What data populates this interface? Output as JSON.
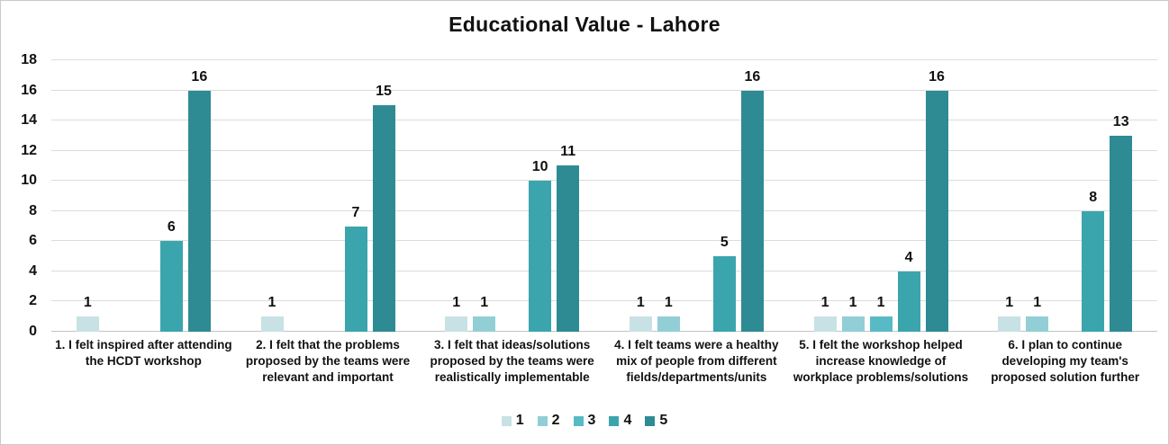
{
  "window": {
    "background": "#ffffff",
    "border_color": "#c9c9c9"
  },
  "chart_data": {
    "type": "bar",
    "title": "Educational Value - Lahore",
    "categories": [
      "1. I felt inspired after attending the HCDT workshop",
      "2. I felt that the problems proposed by the teams were relevant and important",
      "3. I felt that ideas/solutions proposed by the teams were realistically implementable",
      "4. I felt teams were a healthy mix of people from different fields/departments/units",
      "5. I felt the workshop helped increase knowledge of workplace problems/solutions",
      "6. I plan to continue developing my team's proposed solution further"
    ],
    "series": [
      {
        "name": "1",
        "color": "#c8e1e4",
        "values": [
          1,
          1,
          1,
          1,
          1,
          1
        ]
      },
      {
        "name": "2",
        "color": "#92ced5",
        "values": [
          0,
          0,
          1,
          1,
          1,
          1
        ]
      },
      {
        "name": "3",
        "color": "#58bac5",
        "values": [
          0,
          0,
          0,
          0,
          1,
          0
        ]
      },
      {
        "name": "4",
        "color": "#3ba5ad",
        "values": [
          6,
          7,
          10,
          5,
          4,
          8
        ]
      },
      {
        "name": "5",
        "color": "#2e8b94",
        "values": [
          16,
          15,
          11,
          16,
          16,
          13
        ]
      }
    ],
    "ylim": [
      0,
      18
    ],
    "ytick_step": 2,
    "yticks": [
      0,
      2,
      4,
      6,
      8,
      10,
      12,
      14,
      16,
      18
    ],
    "grid": true,
    "legend_position": "bottom",
    "data_labels": "shown above non-zero bars",
    "text_color": "#111111",
    "gridline_color": "#dcdcdc"
  }
}
